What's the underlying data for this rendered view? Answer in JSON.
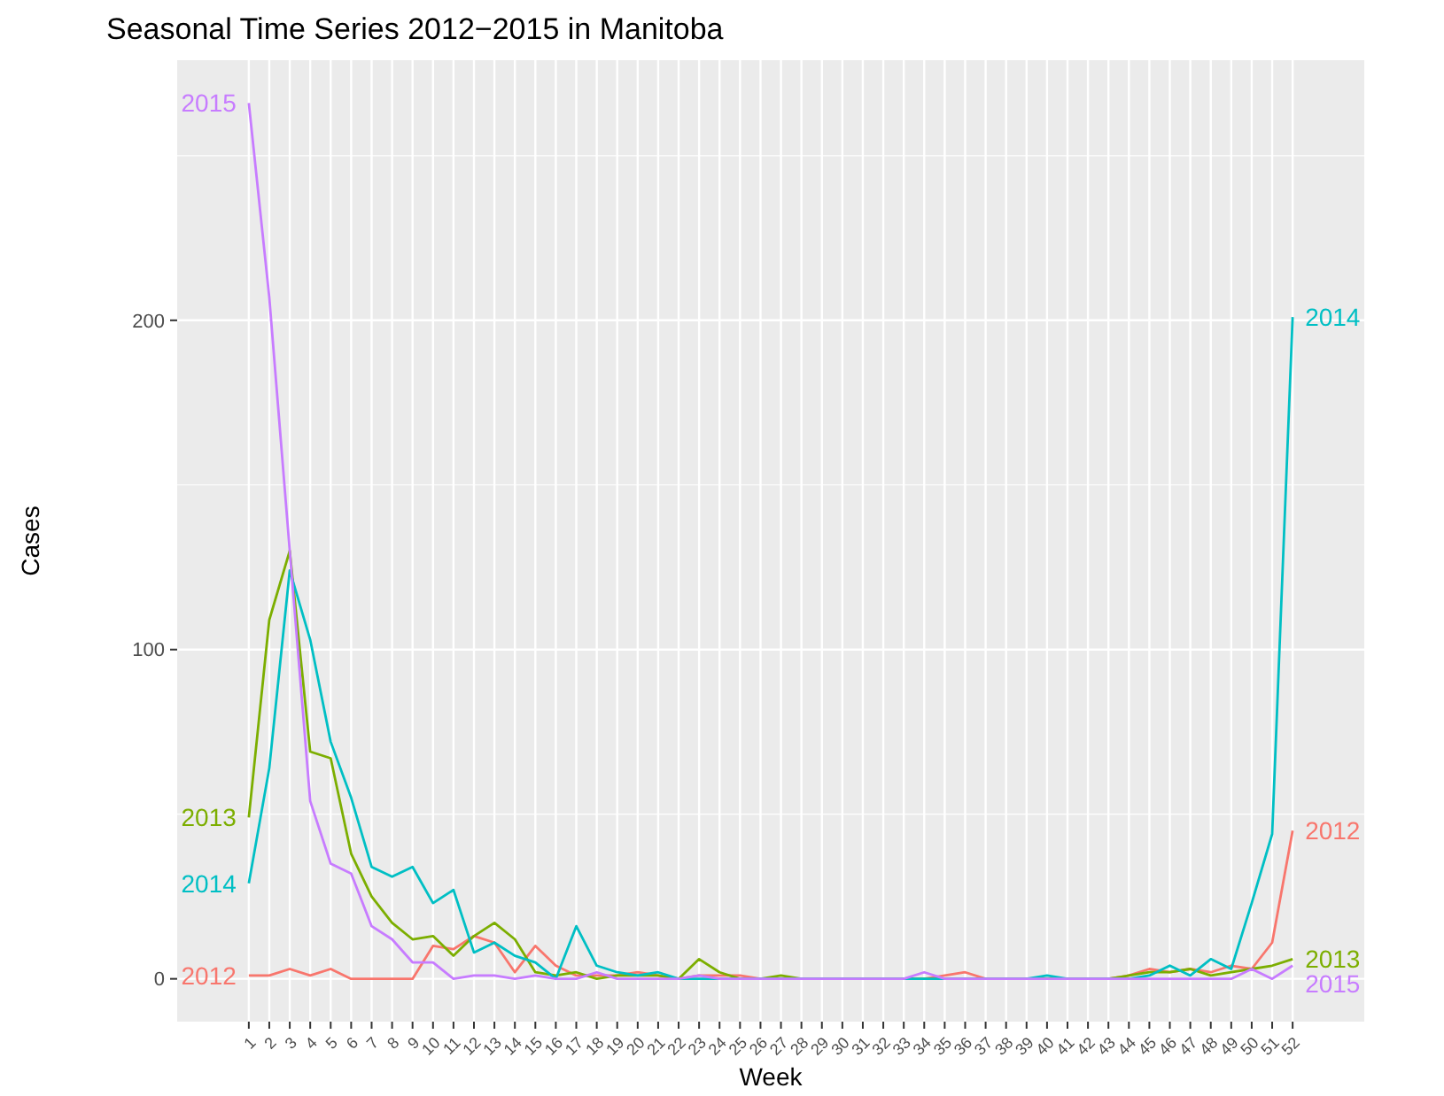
{
  "chart_data": {
    "type": "line",
    "title": "Seasonal Time Series 2012−2015 in Manitoba",
    "xlabel": "Week",
    "ylabel": "Cases",
    "categories": [
      "1",
      "2",
      "3",
      "4",
      "5",
      "6",
      "7",
      "8",
      "9",
      "10",
      "11",
      "12",
      "13",
      "14",
      "15",
      "16",
      "17",
      "18",
      "19",
      "20",
      "21",
      "22",
      "23",
      "24",
      "25",
      "26",
      "27",
      "28",
      "29",
      "30",
      "31",
      "32",
      "33",
      "34",
      "35",
      "36",
      "37",
      "38",
      "39",
      "40",
      "41",
      "42",
      "43",
      "44",
      "45",
      "46",
      "47",
      "48",
      "49",
      "50",
      "51",
      "52"
    ],
    "ylim": [
      -13,
      279
    ],
    "yticks": [
      0,
      100,
      200
    ],
    "grid": true,
    "series": [
      {
        "name": "2012",
        "color": "#f8766d",
        "values": [
          1,
          1,
          3,
          1,
          3,
          0,
          0,
          0,
          0,
          10,
          9,
          13,
          11,
          2,
          10,
          4,
          1,
          1,
          1,
          2,
          1,
          0,
          1,
          1,
          1,
          0,
          0,
          0,
          0,
          0,
          0,
          0,
          0,
          0,
          1,
          2,
          0,
          0,
          0,
          0,
          0,
          0,
          0,
          1,
          3,
          2,
          3,
          2,
          4,
          3,
          11,
          45
        ]
      },
      {
        "name": "2013",
        "color": "#7cae00",
        "values": [
          49,
          109,
          130,
          69,
          67,
          38,
          25,
          17,
          12,
          13,
          7,
          13,
          17,
          12,
          2,
          1,
          2,
          0,
          1,
          1,
          1,
          0,
          6,
          2,
          0,
          0,
          1,
          0,
          0,
          0,
          0,
          0,
          0,
          0,
          0,
          0,
          0,
          0,
          0,
          0,
          0,
          0,
          0,
          1,
          2,
          2,
          3,
          1,
          2,
          3,
          4,
          6
        ]
      },
      {
        "name": "2014",
        "color": "#00bfc4",
        "values": [
          29,
          64,
          124,
          103,
          72,
          55,
          34,
          31,
          34,
          23,
          27,
          8,
          11,
          7,
          5,
          0,
          16,
          4,
          2,
          1,
          2,
          0,
          0,
          0,
          0,
          0,
          0,
          0,
          0,
          0,
          0,
          0,
          0,
          0,
          0,
          0,
          0,
          0,
          0,
          1,
          0,
          0,
          0,
          0,
          1,
          4,
          1,
          6,
          3,
          23,
          44,
          201
        ]
      },
      {
        "name": "2015",
        "color": "#c77cff",
        "values": [
          266,
          207,
          130,
          54,
          35,
          32,
          16,
          12,
          5,
          5,
          0,
          1,
          1,
          0,
          1,
          0,
          0,
          2,
          0,
          0,
          0,
          0,
          1,
          0,
          0,
          0,
          0,
          0,
          0,
          0,
          0,
          0,
          0,
          2,
          0,
          0,
          0,
          0,
          0,
          0,
          0,
          0,
          0,
          0,
          0,
          0,
          0,
          0,
          0,
          3,
          0,
          4
        ]
      }
    ]
  }
}
